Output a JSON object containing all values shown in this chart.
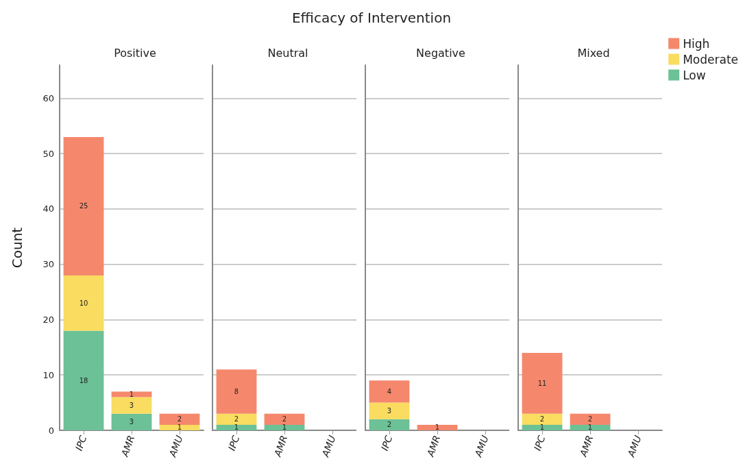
{
  "chart_data": [
    {
      "type": "other",
      "title": "Efficacy of Intervention"
    },
    {
      "type": "bar",
      "subtitle": "Positive",
      "ylabel": "Count",
      "categories": [
        "IPC",
        "AMR",
        "AMU"
      ],
      "stacked": true,
      "data_labels": true,
      "grid": "y",
      "ylim": [
        0,
        66
      ],
      "yticks": [
        0,
        10,
        20,
        30,
        40,
        50,
        60
      ],
      "series": [
        {
          "color": "#6cc196",
          "values": [
            18,
            3,
            null
          ]
        },
        {
          "color": "#f9dc60",
          "values": [
            10,
            3,
            1
          ]
        },
        {
          "color": "#f5886c",
          "values": [
            25,
            1,
            2
          ]
        }
      ]
    },
    {
      "type": "bar",
      "subtitle": "Neutral",
      "categories": [
        "IPC",
        "AMR",
        "AMU"
      ],
      "stacked": true,
      "data_labels": true,
      "grid": "y",
      "tick_labels": "x",
      "ylim": [
        0,
        66
      ],
      "yticks": [
        0,
        10,
        20,
        30,
        40,
        50,
        60
      ],
      "series": [
        {
          "color": "#6cc196",
          "values": [
            1,
            1,
            null
          ]
        },
        {
          "color": "#f9dc60",
          "values": [
            2,
            null,
            null
          ]
        },
        {
          "color": "#f5886c",
          "values": [
            8,
            2,
            null
          ]
        }
      ]
    },
    {
      "type": "bar",
      "subtitle": "Negative",
      "categories": [
        "IPC",
        "AMR",
        "AMU"
      ],
      "stacked": true,
      "data_labels": true,
      "grid": "y",
      "tick_labels": "x",
      "ylim": [
        0,
        66
      ],
      "yticks": [
        0,
        10,
        20,
        30,
        40,
        50,
        60
      ],
      "series": [
        {
          "color": "#6cc196",
          "values": [
            2,
            null,
            null
          ]
        },
        {
          "color": "#f9dc60",
          "values": [
            3,
            null,
            null
          ]
        },
        {
          "color": "#f5886c",
          "values": [
            4,
            1,
            null
          ]
        }
      ]
    },
    {
      "type": "bar",
      "subtitle": "Mixed",
      "categories": [
        "IPC",
        "AMR",
        "AMU"
      ],
      "stacked": true,
      "data_labels": true,
      "grid": "y",
      "legend": "top right",
      "tick_labels": "x",
      "ylim": [
        0,
        66
      ],
      "yticks": [
        0,
        10,
        20,
        30,
        40,
        50,
        60
      ],
      "series": [
        {
          "name": "Low",
          "color": "#6cc196",
          "values": [
            1,
            1,
            null
          ]
        },
        {
          "name": "Moderate",
          "color": "#f9dc60",
          "values": [
            2,
            null,
            null
          ]
        },
        {
          "name": "High",
          "color": "#f5886c",
          "values": [
            11,
            2,
            null
          ]
        }
      ]
    }
  ]
}
